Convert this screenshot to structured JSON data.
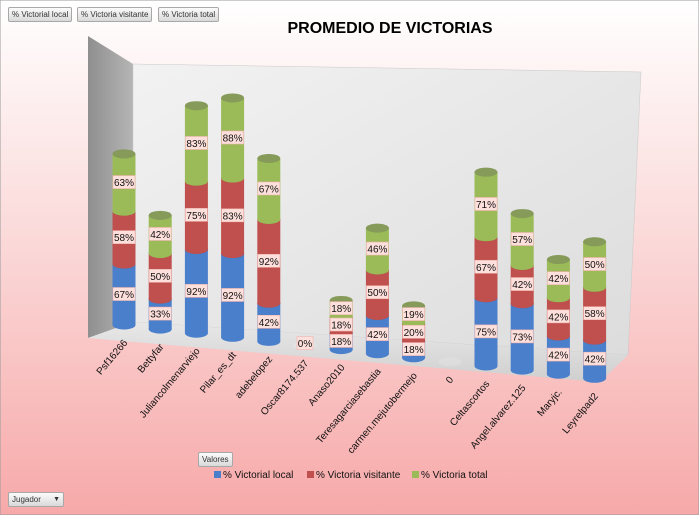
{
  "field_buttons": [
    "% Victorial local",
    "% Victoria visitante",
    "% Victoria total"
  ],
  "valores_button": "Valores",
  "jugador_button": "Jugador",
  "chart_data": {
    "type": "bar",
    "stacked": true,
    "title": "PROMEDIO DE VICTORIAS",
    "xlabel": "",
    "ylabel": "",
    "legend_position": "bottom",
    "categories": [
      "Psf16266",
      "Bettyfar",
      "Juliancolmenarviejo",
      "Pilar_es_dt",
      "adebelopez",
      "Oscar8174.537",
      "Anaso2010",
      "Teresagarciasebastia",
      "carmen.mejutobermejo",
      "0",
      "Celtascortos",
      "Angel.alvarez.125",
      "Maryjc.",
      "Leyrelpad2"
    ],
    "series": [
      {
        "name": "% Victorial local",
        "color": "#4a7fcc",
        "values": [
          67,
          33,
          92,
          92,
          42,
          0,
          18,
          42,
          18,
          null,
          75,
          73,
          42,
          42
        ]
      },
      {
        "name": "% Victoria visitante",
        "color": "#c0504d",
        "values": [
          58,
          50,
          75,
          83,
          92,
          null,
          18,
          50,
          20,
          null,
          67,
          42,
          42,
          58
        ]
      },
      {
        "name": "% Victoria total",
        "color": "#9bbb59",
        "values": [
          63,
          42,
          83,
          88,
          67,
          null,
          18,
          46,
          19,
          null,
          71,
          57,
          42,
          50
        ]
      }
    ],
    "data_labels": {
      "local": [
        "67%",
        "33%",
        "92%",
        "92%",
        "42%",
        "0%",
        "18%",
        "42%",
        "18%",
        "",
        "75%",
        "73%",
        "42%",
        "42%"
      ],
      "visitante": [
        "58%",
        "50%",
        "75%",
        "83%",
        "92%",
        "",
        "18%",
        "50%",
        "20%",
        "",
        "67%",
        "42%",
        "42%",
        "58%"
      ],
      "total": [
        "63%",
        "42%",
        "83%",
        "88%",
        "67%",
        "",
        "18%",
        "46%",
        "19%",
        "",
        "71%",
        "57%",
        "42%",
        "50%"
      ]
    }
  }
}
